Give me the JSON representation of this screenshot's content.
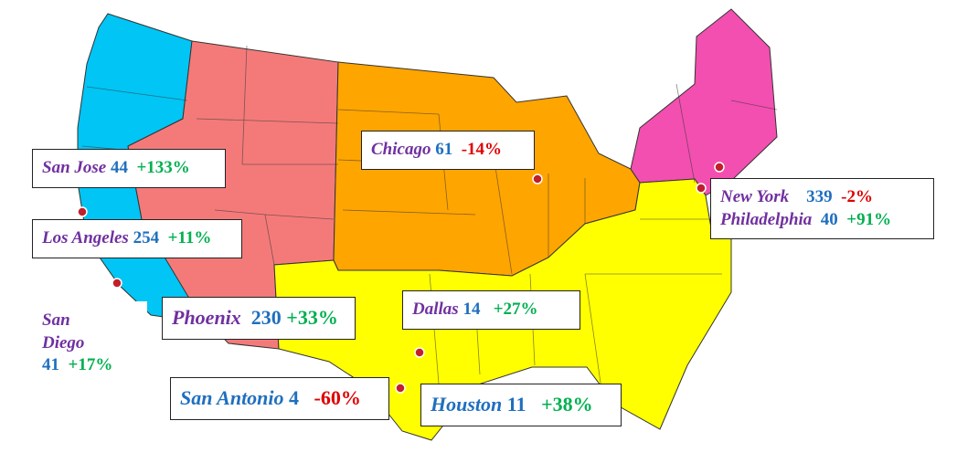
{
  "cities": [
    {
      "name": "San Jose",
      "value": 44,
      "change": "+133%"
    },
    {
      "name": "Los Angeles",
      "value": 254,
      "change": "+11%"
    },
    {
      "name": "San Diego",
      "value": 41,
      "change": "+17%"
    },
    {
      "name": "Phoenix",
      "value": 230,
      "change": "+33%"
    },
    {
      "name": "Chicago",
      "value": 61,
      "change": "-14%"
    },
    {
      "name": "New York",
      "value": 339,
      "change": "-2%"
    },
    {
      "name": "Philadelphia",
      "value": 40,
      "change": "+91%"
    },
    {
      "name": "Dallas",
      "value": 14,
      "change": "+27%"
    },
    {
      "name": "San Antonio",
      "value": 4,
      "change": "-60%"
    },
    {
      "name": "Houston",
      "value": 11,
      "change": "+38%"
    }
  ]
}
